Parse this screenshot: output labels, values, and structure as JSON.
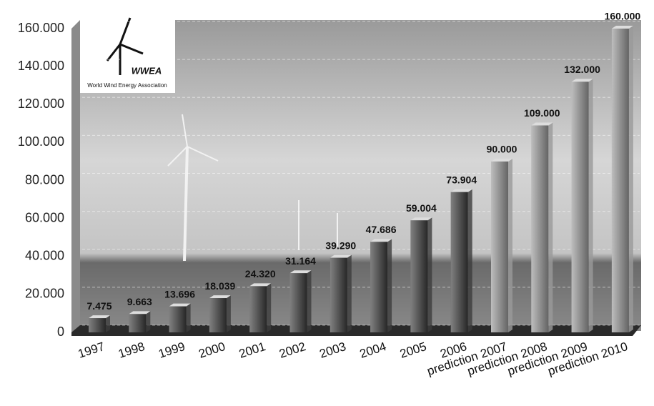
{
  "chart_data": {
    "type": "bar",
    "annotations": [
      "WWEA",
      "World Wind Energy Association"
    ],
    "categories": [
      "1997",
      "1998",
      "1999",
      "2000",
      "2001",
      "2002",
      "2003",
      "2004",
      "2005",
      "2006",
      "prediction 2007",
      "prediction 2008",
      "prediction 2009",
      "prediction 2010"
    ],
    "values": [
      7475,
      9663,
      13696,
      18039,
      24320,
      31164,
      39290,
      47686,
      59004,
      73904,
      90000,
      109000,
      132000,
      160000
    ],
    "value_labels": [
      "7.475",
      "9.663",
      "13.696",
      "18.039",
      "24.320",
      "31.164",
      "39.290",
      "47.686",
      "59.004",
      "73.904",
      "90.000",
      "109.000",
      "132.000",
      "160.000"
    ],
    "colors": [
      "#3c3c3c",
      "#3c3c3c",
      "#3c3c3c",
      "#3c3c3c",
      "#3c3c3c",
      "#3c3c3c",
      "#3c3c3c",
      "#3c3c3c",
      "#3c3c3c",
      "#3c3c3c",
      "#9a9a9a",
      "#9a9a9a",
      "#9a9a9a",
      "#9a9a9a"
    ],
    "ylim": [
      0,
      160000
    ],
    "yticks": [
      0,
      {
        "value": 20000,
        "label": "20.000"
      },
      {
        "value": 40000,
        "label": "40.000"
      },
      {
        "value": 60000,
        "label": "60.000"
      },
      {
        "value": 80000,
        "label": "80.000"
      },
      {
        "value": 100000,
        "label": "100.000"
      },
      {
        "value": 120000,
        "label": "120.000"
      },
      {
        "value": 140000,
        "label": "140.000"
      },
      {
        "value": 160000,
        "label": "160.000"
      }
    ],
    "grid": true
  }
}
